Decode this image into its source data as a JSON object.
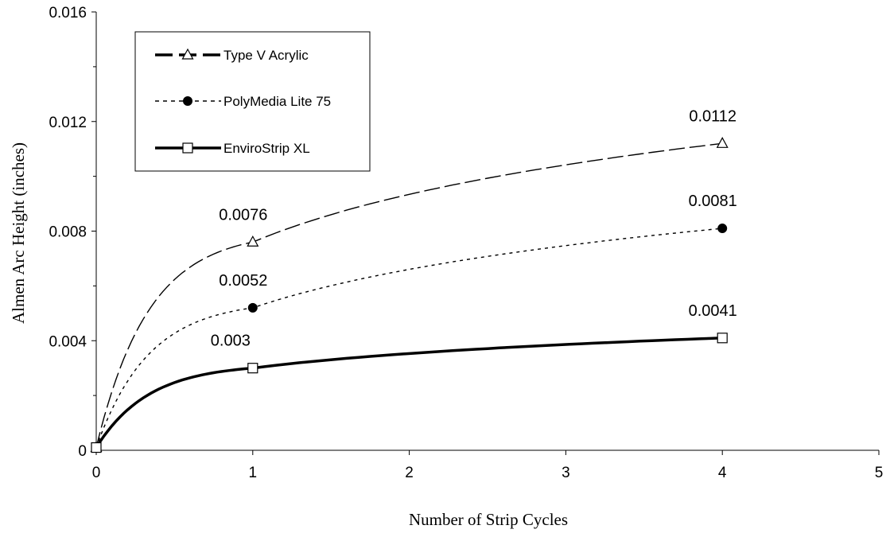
{
  "chart_data": {
    "type": "line",
    "title": "",
    "xlabel": "Number of Strip Cycles",
    "ylabel": "Almen Arc Height (inches)",
    "xlim": [
      0,
      5
    ],
    "ylim": [
      0,
      0.016
    ],
    "x_ticks": [
      "0",
      "1",
      "2",
      "3",
      "4",
      "5"
    ],
    "y_ticks": [
      "0",
      "0.004",
      "0.008",
      "0.012",
      "0.016"
    ],
    "grid": false,
    "legend_position": "top-left",
    "series": [
      {
        "name": "Type V Acrylic",
        "marker": "triangle-open",
        "line_style": "dashed",
        "points": [
          [
            0,
            0.0001
          ],
          [
            1,
            0.0076
          ],
          [
            4,
            0.0112
          ]
        ],
        "labels": [
          "",
          "0.0076",
          "0.0112"
        ]
      },
      {
        "name": "PolyMedia Lite 75",
        "marker": "circle-filled",
        "line_style": "dotted",
        "points": [
          [
            0,
            0.0001
          ],
          [
            1,
            0.0052
          ],
          [
            4,
            0.0081
          ]
        ],
        "labels": [
          "",
          "0.0052",
          "0.0081"
        ]
      },
      {
        "name": "EnviroStrip XL",
        "marker": "square-open",
        "line_style": "solid",
        "points": [
          [
            0,
            0.0001
          ],
          [
            1,
            0.003
          ],
          [
            4,
            0.0041
          ]
        ],
        "labels": [
          "",
          "0.003",
          "0.0041"
        ]
      }
    ]
  }
}
